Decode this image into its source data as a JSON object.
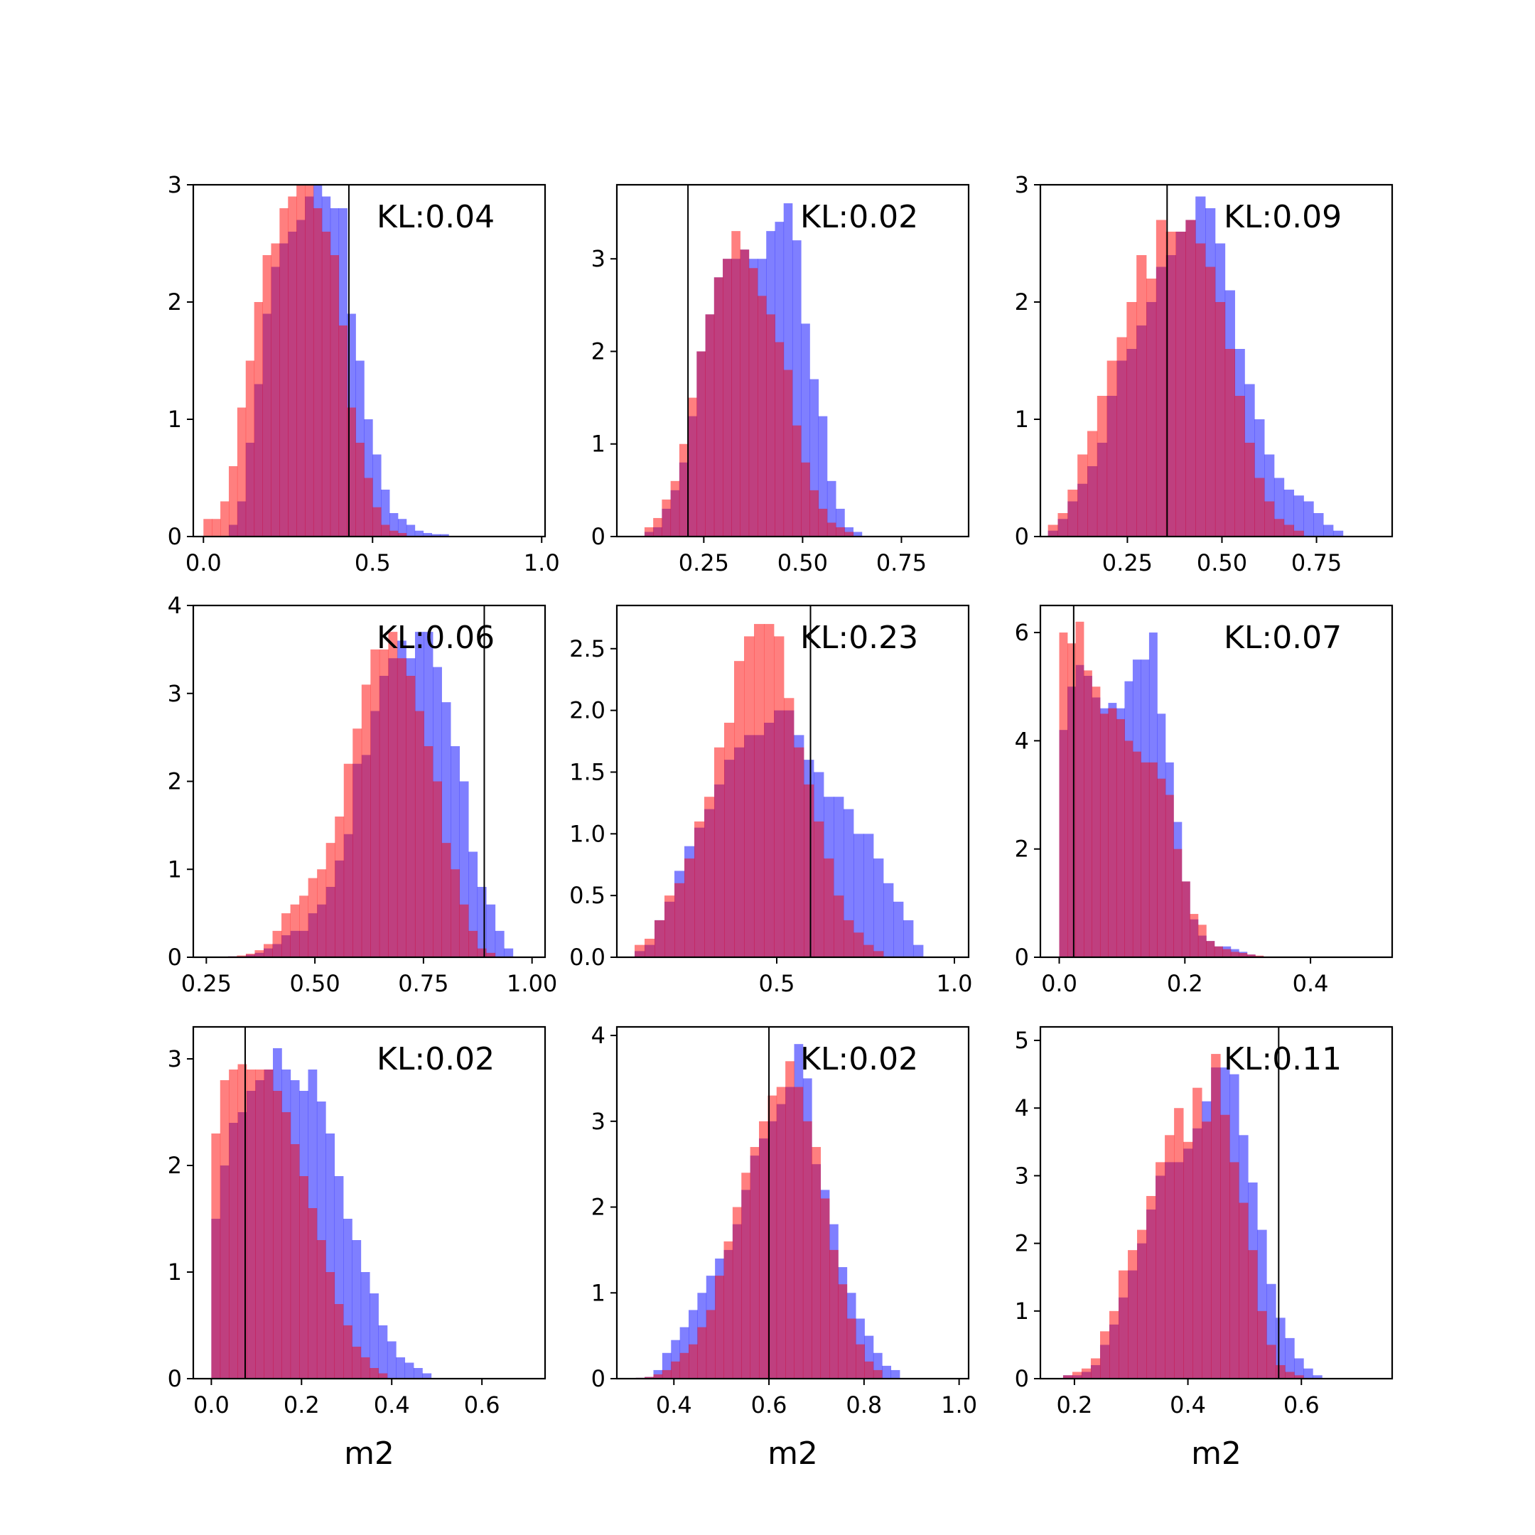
{
  "figure": {
    "colors": {
      "series_blue": "#0000ff",
      "series_red": "#ff0000",
      "overlap": "#800080",
      "marker": "#000000"
    },
    "bar_opacity": 0.5
  },
  "chart_data": [
    {
      "type": "histogram",
      "annotation": "KL:0.04",
      "xlabel": "",
      "xlim": [
        -0.03,
        1.01
      ],
      "ylim": [
        0,
        3.0
      ],
      "xticks": [
        0.0,
        0.5,
        1.0
      ],
      "xtick_labels": [
        "0.0",
        "0.5",
        "1.0"
      ],
      "yticks": [
        0,
        1,
        2,
        3
      ],
      "ytick_labels": [
        "0",
        "1",
        "2",
        "3"
      ],
      "marker_x": 0.43,
      "bin_width": 0.025,
      "series": [
        {
          "color": "blue",
          "x_start": 0.075,
          "values": [
            0.1,
            0.3,
            0.8,
            1.3,
            1.9,
            2.3,
            2.5,
            2.6,
            2.7,
            2.9,
            3.0,
            2.9,
            2.8,
            2.8,
            1.9,
            1.5,
            1.0,
            0.7,
            0.4,
            0.2,
            0.15,
            0.1,
            0.05,
            0.03,
            0.02,
            0.02
          ]
        },
        {
          "color": "red",
          "x_start": 0.0,
          "values": [
            0.15,
            0.15,
            0.3,
            0.6,
            1.1,
            1.5,
            2.0,
            2.4,
            2.5,
            2.8,
            2.9,
            3.0,
            3.0,
            2.8,
            2.6,
            2.4,
            1.8,
            1.1,
            0.8,
            0.5,
            0.25,
            0.1,
            0.05,
            0.03
          ]
        }
      ]
    },
    {
      "type": "histogram",
      "annotation": "KL:0.02",
      "xlabel": "",
      "xlim": [
        0.03,
        0.92
      ],
      "ylim": [
        0,
        3.8
      ],
      "xticks": [
        0.25,
        0.5,
        0.75
      ],
      "xtick_labels": [
        "0.25",
        "0.50",
        "0.75"
      ],
      "yticks": [
        0,
        1,
        2,
        3
      ],
      "ytick_labels": [
        "0",
        "1",
        "2",
        "3"
      ],
      "marker_x": 0.21,
      "bin_width": 0.022,
      "series": [
        {
          "color": "blue",
          "x_start": 0.1,
          "values": [
            0.05,
            0.1,
            0.3,
            0.5,
            0.8,
            1.3,
            2.0,
            2.4,
            2.8,
            3.0,
            3.0,
            3.1,
            3.0,
            3.0,
            3.3,
            3.4,
            3.6,
            3.2,
            2.3,
            1.7,
            1.3,
            0.6,
            0.3,
            0.1,
            0.05
          ]
        },
        {
          "color": "red",
          "x_start": 0.1,
          "values": [
            0.1,
            0.2,
            0.4,
            0.6,
            1.0,
            1.5,
            2.0,
            2.4,
            2.8,
            3.0,
            3.3,
            3.1,
            2.9,
            2.6,
            2.4,
            2.1,
            1.8,
            1.2,
            0.8,
            0.5,
            0.3,
            0.15,
            0.1,
            0.05
          ]
        }
      ]
    },
    {
      "type": "histogram",
      "annotation": "KL:0.09",
      "xlabel": "",
      "xlim": [
        0.02,
        0.95
      ],
      "ylim": [
        0,
        3.0
      ],
      "xticks": [
        0.25,
        0.5,
        0.75
      ],
      "xtick_labels": [
        "0.25",
        "0.50",
        "0.75"
      ],
      "yticks": [
        0,
        1,
        2,
        3
      ],
      "ytick_labels": [
        "0",
        "1",
        "2",
        "3"
      ],
      "marker_x": 0.355,
      "bin_width": 0.026,
      "series": [
        {
          "color": "blue",
          "x_start": 0.04,
          "values": [
            0.05,
            0.15,
            0.3,
            0.45,
            0.6,
            0.8,
            1.2,
            1.5,
            1.6,
            1.8,
            2.0,
            2.3,
            2.4,
            2.6,
            2.7,
            2.9,
            2.8,
            2.5,
            2.1,
            1.6,
            1.3,
            1.0,
            0.7,
            0.5,
            0.4,
            0.35,
            0.3,
            0.2,
            0.1,
            0.05
          ]
        },
        {
          "color": "red",
          "x_start": 0.04,
          "values": [
            0.1,
            0.2,
            0.4,
            0.7,
            0.9,
            1.2,
            1.5,
            1.7,
            2.0,
            2.4,
            2.2,
            2.7,
            2.6,
            2.6,
            2.7,
            2.5,
            2.3,
            2.0,
            1.6,
            1.2,
            0.8,
            0.5,
            0.3,
            0.15,
            0.1,
            0.05
          ]
        }
      ]
    },
    {
      "type": "histogram",
      "annotation": "KL:0.06",
      "xlabel": "",
      "xlim": [
        0.22,
        1.03
      ],
      "ylim": [
        0,
        4.0
      ],
      "xticks": [
        0.25,
        0.5,
        0.75,
        1.0
      ],
      "xtick_labels": [
        "0.25",
        "0.50",
        "0.75",
        "1.00"
      ],
      "yticks": [
        0,
        1,
        2,
        3,
        4
      ],
      "ytick_labels": [
        "0",
        "1",
        "2",
        "3",
        "4"
      ],
      "marker_x": 0.89,
      "bin_width": 0.0205,
      "series": [
        {
          "color": "blue",
          "x_start": 0.3,
          "values": [
            0.01,
            0.01,
            0.03,
            0.05,
            0.1,
            0.15,
            0.25,
            0.3,
            0.3,
            0.5,
            0.6,
            0.8,
            1.1,
            1.4,
            2.2,
            2.3,
            2.8,
            3.2,
            3.4,
            3.6,
            3.4,
            3.7,
            3.7,
            3.3,
            2.9,
            2.4,
            2.0,
            1.2,
            0.8,
            0.6,
            0.3,
            0.1
          ]
        },
        {
          "color": "red",
          "x_start": 0.3,
          "values": [
            0.01,
            0.02,
            0.04,
            0.08,
            0.15,
            0.3,
            0.5,
            0.6,
            0.7,
            0.9,
            1.0,
            1.3,
            1.6,
            2.2,
            2.6,
            3.1,
            3.5,
            3.5,
            3.7,
            3.4,
            3.2,
            2.8,
            2.4,
            2.0,
            1.3,
            1.0,
            0.6,
            0.3,
            0.1,
            0.05
          ]
        }
      ]
    },
    {
      "type": "histogram",
      "annotation": "KL:0.23",
      "xlabel": "",
      "xlim": [
        0.05,
        1.04
      ],
      "ylim": [
        0,
        2.85
      ],
      "xticks": [
        0.5,
        1.0
      ],
      "xtick_labels": [
        "0.5",
        "1.0"
      ],
      "yticks": [
        0.0,
        0.5,
        1.0,
        1.5,
        2.0,
        2.5
      ],
      "ytick_labels": [
        "0.0",
        "0.5",
        "1.0",
        "1.5",
        "2.0",
        "2.5"
      ],
      "marker_x": 0.595,
      "bin_width": 0.028,
      "series": [
        {
          "color": "blue",
          "x_start": 0.1,
          "values": [
            0.05,
            0.1,
            0.3,
            0.45,
            0.7,
            0.9,
            1.05,
            1.2,
            1.4,
            1.6,
            1.7,
            1.8,
            1.8,
            1.9,
            2.0,
            2.0,
            1.8,
            1.6,
            1.5,
            1.3,
            1.3,
            1.2,
            1.0,
            1.0,
            0.8,
            0.6,
            0.45,
            0.3,
            0.1
          ]
        },
        {
          "color": "red",
          "x_start": 0.1,
          "values": [
            0.1,
            0.15,
            0.3,
            0.5,
            0.6,
            0.8,
            1.1,
            1.3,
            1.7,
            1.9,
            2.4,
            2.6,
            2.7,
            2.7,
            2.6,
            2.1,
            1.7,
            1.4,
            1.1,
            0.8,
            0.5,
            0.3,
            0.2,
            0.1,
            0.05
          ]
        }
      ]
    },
    {
      "type": "histogram",
      "annotation": "KL:0.07",
      "xlabel": "",
      "xlim": [
        -0.03,
        0.53
      ],
      "ylim": [
        0,
        6.5
      ],
      "xticks": [
        0.0,
        0.2,
        0.4
      ],
      "xtick_labels": [
        "0.0",
        "0.2",
        "0.4"
      ],
      "yticks": [
        0,
        2,
        4,
        6
      ],
      "ytick_labels": [
        "0",
        "2",
        "4",
        "6"
      ],
      "marker_x": 0.023,
      "bin_width": 0.013,
      "series": [
        {
          "color": "blue",
          "x_start": 0.0,
          "values": [
            4.2,
            5.0,
            5.4,
            5.2,
            4.8,
            4.6,
            4.7,
            4.6,
            5.1,
            5.5,
            5.5,
            6.0,
            4.5,
            3.6,
            2.5,
            1.4,
            0.7,
            0.4,
            0.3,
            0.2,
            0.2,
            0.15,
            0.1,
            0.05,
            0.02
          ]
        },
        {
          "color": "red",
          "x_start": 0.0,
          "values": [
            6.0,
            5.8,
            6.2,
            5.3,
            5.0,
            4.5,
            4.6,
            4.4,
            4.0,
            3.8,
            3.6,
            3.6,
            3.3,
            3.0,
            2.0,
            1.4,
            0.8,
            0.6,
            0.3,
            0.2,
            0.15,
            0.1,
            0.08,
            0.05,
            0.03
          ]
        }
      ]
    },
    {
      "type": "histogram",
      "annotation": "KL:0.02",
      "xlabel": "m2",
      "xlim": [
        -0.04,
        0.74
      ],
      "ylim": [
        0,
        3.3
      ],
      "xticks": [
        0.0,
        0.2,
        0.4,
        0.6
      ],
      "xtick_labels": [
        "0.0",
        "0.2",
        "0.4",
        "0.6"
      ],
      "yticks": [
        0,
        1,
        2,
        3
      ],
      "ytick_labels": [
        "0",
        "1",
        "2",
        "3"
      ],
      "marker_x": 0.075,
      "bin_width": 0.0195,
      "series": [
        {
          "color": "blue",
          "x_start": 0.0,
          "values": [
            1.5,
            2.0,
            2.4,
            2.5,
            2.7,
            2.8,
            2.9,
            3.1,
            2.9,
            2.8,
            2.7,
            2.9,
            2.6,
            2.3,
            1.9,
            1.5,
            1.3,
            1.0,
            0.8,
            0.5,
            0.35,
            0.2,
            0.15,
            0.1,
            0.05
          ]
        },
        {
          "color": "red",
          "x_start": 0.0,
          "values": [
            2.3,
            2.8,
            2.9,
            2.95,
            2.9,
            2.9,
            2.9,
            2.7,
            2.5,
            2.2,
            1.9,
            1.6,
            1.3,
            1.0,
            0.7,
            0.5,
            0.3,
            0.2,
            0.1,
            0.05
          ]
        }
      ]
    },
    {
      "type": "histogram",
      "annotation": "KL:0.02",
      "xlabel": "m2",
      "xlim": [
        0.28,
        1.02
      ],
      "ylim": [
        0,
        4.1
      ],
      "xticks": [
        0.4,
        0.6,
        0.8,
        1.0
      ],
      "xtick_labels": [
        "0.4",
        "0.6",
        "0.8",
        "1.0"
      ],
      "yticks": [
        0,
        1,
        2,
        3,
        4
      ],
      "ytick_labels": [
        "0",
        "1",
        "2",
        "3",
        "4"
      ],
      "marker_x": 0.6,
      "bin_width": 0.0185,
      "series": [
        {
          "color": "blue",
          "x_start": 0.32,
          "values": [
            0.01,
            0.02,
            0.1,
            0.3,
            0.45,
            0.6,
            0.8,
            1.0,
            1.2,
            1.4,
            1.5,
            1.8,
            2.2,
            2.6,
            2.8,
            3.0,
            3.2,
            3.4,
            3.9,
            3.5,
            2.5,
            2.2,
            1.8,
            1.3,
            1.0,
            0.7,
            0.5,
            0.3,
            0.15,
            0.1
          ]
        },
        {
          "color": "red",
          "x_start": 0.32,
          "values": [
            0.01,
            0.02,
            0.05,
            0.1,
            0.2,
            0.3,
            0.4,
            0.6,
            0.8,
            1.2,
            1.6,
            2.0,
            2.4,
            2.7,
            3.0,
            3.3,
            3.4,
            3.7,
            3.4,
            3.0,
            2.7,
            2.1,
            1.5,
            1.1,
            0.7,
            0.4,
            0.2,
            0.1
          ]
        }
      ]
    },
    {
      "type": "histogram",
      "annotation": "KL:0.11",
      "xlabel": "m2",
      "xlim": [
        0.14,
        0.76
      ],
      "ylim": [
        0,
        5.2
      ],
      "xticks": [
        0.2,
        0.4,
        0.6
      ],
      "xtick_labels": [
        "0.2",
        "0.4",
        "0.6"
      ],
      "yticks": [
        0,
        1,
        2,
        3,
        4,
        5
      ],
      "ytick_labels": [
        "0",
        "1",
        "2",
        "3",
        "4",
        "5"
      ],
      "marker_x": 0.56,
      "bin_width": 0.0163,
      "series": [
        {
          "color": "blue",
          "x_start": 0.18,
          "values": [
            0.05,
            0.05,
            0.1,
            0.2,
            0.5,
            0.8,
            1.2,
            1.6,
            2.0,
            2.5,
            3.0,
            3.2,
            3.2,
            3.4,
            3.7,
            4.1,
            4.6,
            4.6,
            4.5,
            3.6,
            2.9,
            2.2,
            1.4,
            0.9,
            0.6,
            0.3,
            0.15,
            0.05
          ]
        },
        {
          "color": "red",
          "x_start": 0.18,
          "values": [
            0.05,
            0.1,
            0.15,
            0.3,
            0.7,
            1.0,
            1.6,
            1.9,
            2.2,
            2.7,
            3.2,
            3.6,
            4.0,
            3.5,
            4.3,
            3.8,
            4.8,
            3.9,
            3.2,
            2.6,
            1.9,
            1.0,
            0.5,
            0.2,
            0.1,
            0.05
          ]
        }
      ]
    }
  ]
}
